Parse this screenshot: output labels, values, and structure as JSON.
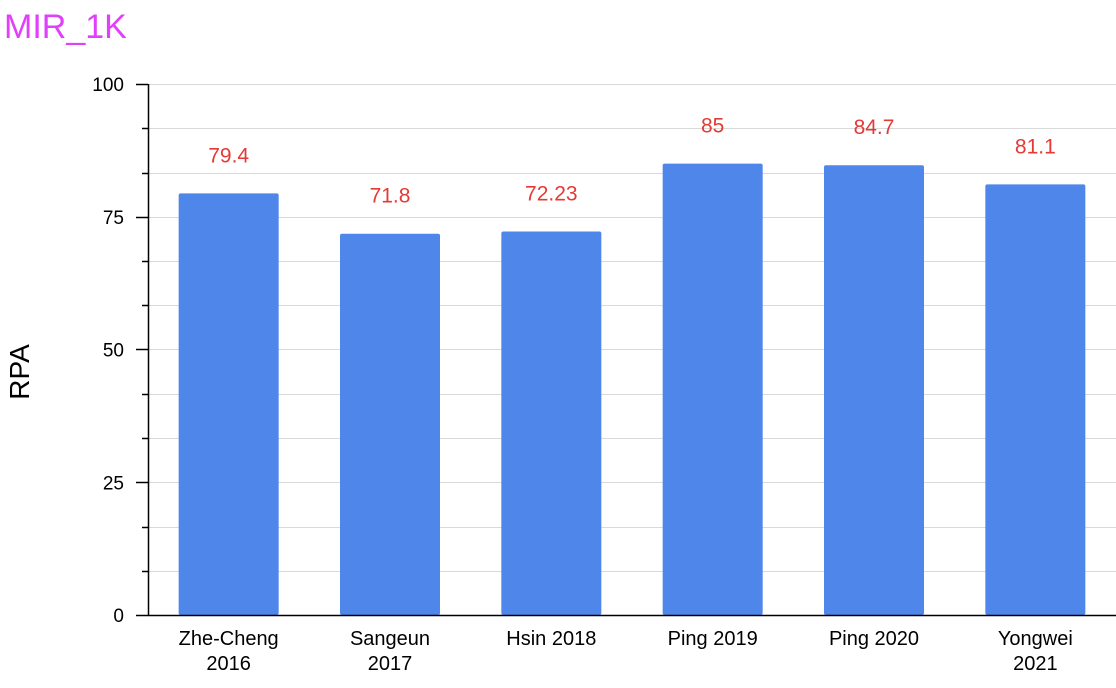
{
  "chart_data": {
    "type": "bar",
    "title": "MIR_1K",
    "xlabel": "",
    "ylabel": "RPA",
    "ylim": [
      0,
      100
    ],
    "yticks": [
      0,
      25,
      50,
      75,
      100
    ],
    "grid": true,
    "categories": [
      [
        "Zhe-Cheng",
        "2016"
      ],
      [
        "Sangeun",
        "2017"
      ],
      [
        "Hsin 2018"
      ],
      [
        "Ping 2019"
      ],
      [
        "Ping 2020"
      ],
      [
        "Yongwei",
        "2021"
      ]
    ],
    "values": [
      79.4,
      71.8,
      72.23,
      85,
      84.7,
      81.1
    ],
    "data_labels": [
      "79.4",
      "71.8",
      "72.23",
      "85",
      "84.7",
      "81.1"
    ],
    "colors": {
      "bar": "#4f86ea",
      "title": "#e040fb",
      "data_label": "#e53935",
      "grid": "#d9d9d9",
      "axis": "#000000"
    }
  }
}
